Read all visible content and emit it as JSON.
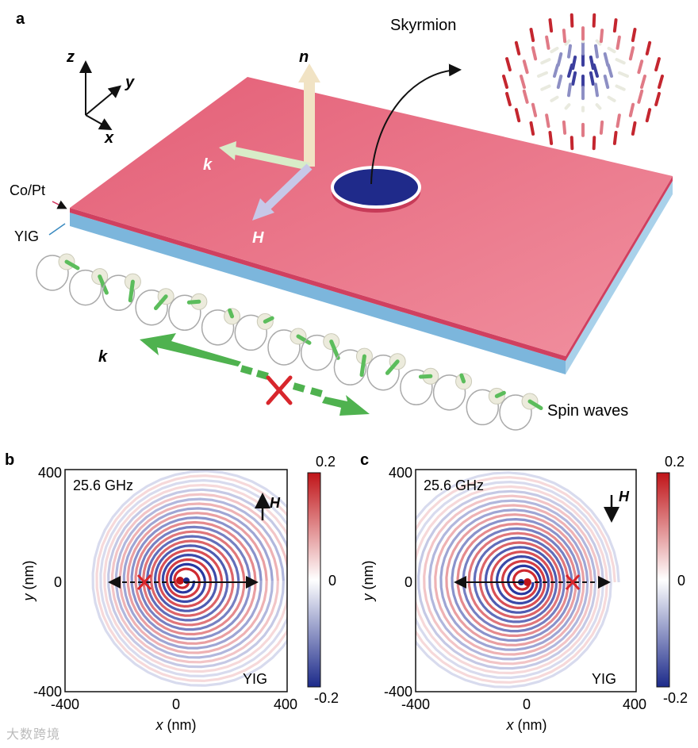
{
  "panel_a": {
    "letter": "a",
    "axes": {
      "z": "z",
      "y": "y",
      "x": "x"
    },
    "labels": {
      "n": "n",
      "k_top": "k",
      "H": "H",
      "skyrmion": "Skyrmion",
      "co_pt": "Co/Pt",
      "yig": "YIG",
      "k_bottom": "k",
      "spin_waves": "Spin waves"
    },
    "colors": {
      "film": "#d84a6a",
      "substrate": "#7cb6dc",
      "skyrmion": "#1f2a8a",
      "arrow_green": "#5cbd5c",
      "red_x": "#d8262c"
    }
  },
  "panel_b": {
    "letter": "b",
    "frequency": "25.6 GHz",
    "field_label": "H",
    "field_direction": "up",
    "material": "YIG",
    "xlabel_var": "x",
    "xlabel_unit": " (nm)",
    "ylabel_var": "y",
    "ylabel_unit": " (nm)",
    "xticks": [
      "-400",
      "0",
      "400"
    ],
    "yticks": [
      "400",
      "0",
      "-400"
    ],
    "colorbar_ticks": [
      "0.2",
      "0",
      "-0.2"
    ]
  },
  "panel_c": {
    "letter": "c",
    "frequency": "25.6 GHz",
    "field_label": "H",
    "field_direction": "down",
    "material": "YIG",
    "xlabel_var": "x",
    "xlabel_unit": " (nm)",
    "ylabel_var": "y",
    "ylabel_unit": " (nm)",
    "xticks": [
      "-400",
      "0",
      "400"
    ],
    "yticks": [
      "400",
      "0",
      "-400"
    ],
    "colorbar_ticks": [
      "0.2",
      "0",
      "-0.2"
    ]
  },
  "chart_data": [
    {
      "type": "heatmap",
      "panel": "b",
      "xlim": [
        -400,
        400
      ],
      "ylim": [
        -400,
        400
      ],
      "colorbar_range": [
        -0.2,
        0.2
      ],
      "pattern": "spiral spin-wave emission from skyrmion, propagating to +x",
      "source_center": [
        0,
        0
      ],
      "allowed_direction": "+x",
      "blocked_direction": "-x"
    },
    {
      "type": "heatmap",
      "panel": "c",
      "xlim": [
        -400,
        400
      ],
      "ylim": [
        -400,
        400
      ],
      "colorbar_range": [
        -0.2,
        0.2
      ],
      "pattern": "spiral spin-wave emission from skyrmion, propagating to -x",
      "source_center": [
        0,
        0
      ],
      "allowed_direction": "-x",
      "blocked_direction": "+x"
    }
  ],
  "watermark": "大数跨境"
}
